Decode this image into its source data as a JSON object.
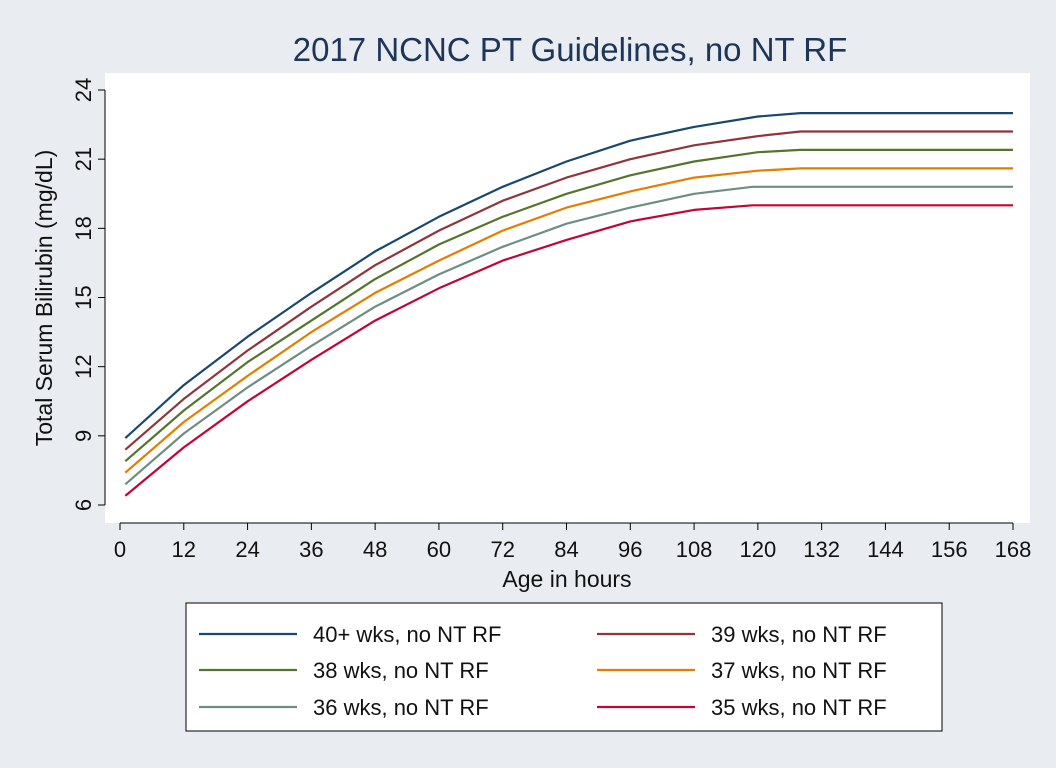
{
  "chart_data": {
    "type": "line",
    "title": "2017 NCNC PT Guidelines, no NT RF",
    "xlabel": "Age in hours",
    "ylabel": "Total Serum Bilirubin (mg/dL)",
    "xlim": [
      0,
      168
    ],
    "ylim": [
      6,
      24
    ],
    "xticks": [
      0,
      12,
      24,
      36,
      48,
      60,
      72,
      84,
      96,
      108,
      120,
      132,
      144,
      156,
      168
    ],
    "yticks": [
      6,
      9,
      12,
      15,
      18,
      21,
      24
    ],
    "legend_position": "bottom",
    "grid": false,
    "series": [
      {
        "name": "40+ wks, no NT RF",
        "color": "#1a476f",
        "x": [
          1,
          12,
          24,
          36,
          48,
          60,
          72,
          84,
          96,
          108,
          120,
          128,
          168
        ],
        "y": [
          8.9,
          11.2,
          13.3,
          15.2,
          17.0,
          18.5,
          19.8,
          20.9,
          21.8,
          22.4,
          22.85,
          23.0,
          23.0
        ]
      },
      {
        "name": "39 wks, no NT RF",
        "color": "#90353b",
        "x": [
          1,
          12,
          24,
          36,
          48,
          60,
          72,
          84,
          96,
          108,
          120,
          128,
          168
        ],
        "y": [
          8.4,
          10.6,
          12.7,
          14.6,
          16.4,
          17.9,
          19.2,
          20.2,
          21.0,
          21.6,
          22.0,
          22.2,
          22.2
        ]
      },
      {
        "name": "38 wks, no NT RF",
        "color": "#55752f",
        "x": [
          1,
          12,
          24,
          36,
          48,
          60,
          72,
          84,
          96,
          108,
          120,
          128,
          168
        ],
        "y": [
          7.9,
          10.1,
          12.2,
          14.0,
          15.8,
          17.3,
          18.5,
          19.5,
          20.3,
          20.9,
          21.3,
          21.4,
          21.4
        ]
      },
      {
        "name": "37 wks, no NT RF",
        "color": "#e37e00",
        "x": [
          1,
          12,
          24,
          36,
          48,
          60,
          72,
          84,
          96,
          108,
          120,
          128,
          168
        ],
        "y": [
          7.4,
          9.6,
          11.6,
          13.5,
          15.2,
          16.6,
          17.9,
          18.9,
          19.6,
          20.2,
          20.5,
          20.6,
          20.6
        ]
      },
      {
        "name": "36 wks, no NT RF",
        "color": "#6e8e84",
        "x": [
          1,
          12,
          24,
          36,
          48,
          60,
          72,
          84,
          96,
          108,
          119,
          168
        ],
        "y": [
          6.9,
          9.1,
          11.1,
          12.9,
          14.6,
          16.0,
          17.2,
          18.2,
          18.9,
          19.5,
          19.8,
          19.8
        ]
      },
      {
        "name": "35 wks, no NT RF",
        "color": "#c10534",
        "x": [
          1,
          12,
          24,
          36,
          48,
          60,
          72,
          84,
          96,
          108,
          119,
          168
        ],
        "y": [
          6.4,
          8.5,
          10.5,
          12.3,
          14.0,
          15.4,
          16.6,
          17.5,
          18.3,
          18.8,
          19.0,
          19.0
        ]
      }
    ]
  }
}
